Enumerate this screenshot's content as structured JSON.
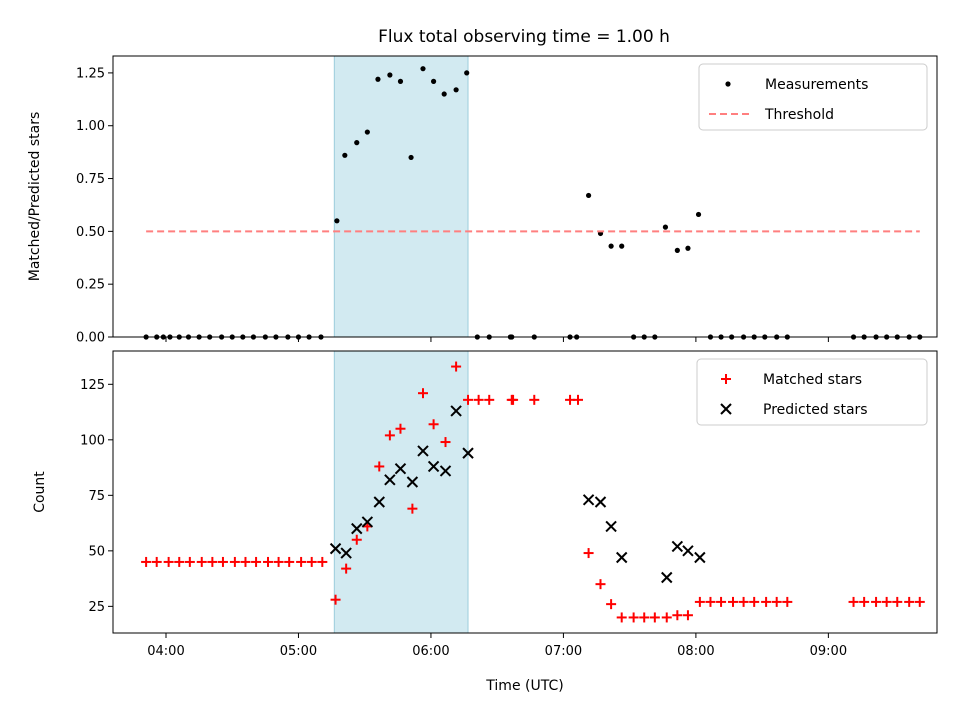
{
  "chart_data": {
    "title": "Flux total observing time = 1.00 h",
    "xlabel": "Time (UTC)",
    "x_ticks": [
      "04:00",
      "05:00",
      "06:00",
      "07:00",
      "08:00",
      "09:00"
    ],
    "x_tick_hours": [
      4,
      5,
      6,
      7,
      8,
      9
    ],
    "xlim_hours": [
      3.6,
      9.82
    ],
    "highlight_span_hours": [
      5.27,
      6.28
    ],
    "highlight_color": "#add8e6",
    "panels": [
      {
        "type": "scatter",
        "ylabel": "Matched/Predicted stars",
        "ylim": [
          0,
          1.33
        ],
        "y_ticks": [
          0.0,
          0.25,
          0.5,
          0.75,
          1.0,
          1.25
        ],
        "y_tick_labels": [
          "0.00",
          "0.25",
          "0.50",
          "0.75",
          "1.00",
          "1.25"
        ],
        "legend_position": "upper right",
        "series": [
          {
            "name": "Measurements",
            "marker": "dot",
            "color": "#000000",
            "points": [
              [
                3.85,
                0
              ],
              [
                3.93,
                0
              ],
              [
                3.98,
                0
              ],
              [
                4.03,
                0
              ],
              [
                4.1,
                0
              ],
              [
                4.17,
                0
              ],
              [
                4.25,
                0
              ],
              [
                4.33,
                0
              ],
              [
                4.42,
                0
              ],
              [
                4.5,
                0
              ],
              [
                4.58,
                0
              ],
              [
                4.66,
                0
              ],
              [
                4.75,
                0
              ],
              [
                4.83,
                0
              ],
              [
                4.92,
                0
              ],
              [
                5.0,
                0
              ],
              [
                5.08,
                0
              ],
              [
                5.17,
                0
              ],
              [
                5.29,
                0.55
              ],
              [
                5.35,
                0.86
              ],
              [
                5.44,
                0.92
              ],
              [
                5.52,
                0.97
              ],
              [
                5.6,
                1.22
              ],
              [
                5.69,
                1.24
              ],
              [
                5.77,
                1.21
              ],
              [
                5.85,
                0.85
              ],
              [
                5.94,
                1.27
              ],
              [
                6.02,
                1.21
              ],
              [
                6.1,
                1.15
              ],
              [
                6.19,
                1.17
              ],
              [
                6.27,
                1.25
              ],
              [
                6.35,
                0
              ],
              [
                6.44,
                0
              ],
              [
                6.6,
                0
              ],
              [
                6.61,
                0
              ],
              [
                6.78,
                0
              ],
              [
                7.05,
                0
              ],
              [
                7.1,
                0
              ],
              [
                7.19,
                0.67
              ],
              [
                7.28,
                0.49
              ],
              [
                7.36,
                0.43
              ],
              [
                7.44,
                0.43
              ],
              [
                7.53,
                0
              ],
              [
                7.61,
                0
              ],
              [
                7.69,
                0
              ],
              [
                7.77,
                0.52
              ],
              [
                7.86,
                0.41
              ],
              [
                7.94,
                0.42
              ],
              [
                8.02,
                0.58
              ],
              [
                8.11,
                0
              ],
              [
                8.19,
                0
              ],
              [
                8.27,
                0
              ],
              [
                8.36,
                0
              ],
              [
                8.44,
                0
              ],
              [
                8.52,
                0
              ],
              [
                8.61,
                0
              ],
              [
                8.69,
                0
              ],
              [
                9.19,
                0
              ],
              [
                9.27,
                0
              ],
              [
                9.36,
                0
              ],
              [
                9.44,
                0
              ],
              [
                9.52,
                0
              ],
              [
                9.61,
                0
              ],
              [
                9.69,
                0
              ]
            ]
          },
          {
            "name": "Threshold",
            "marker": "dashed-line",
            "color": "#ff7f7f",
            "points": [
              [
                3.85,
                0.5
              ],
              [
                9.69,
                0.5
              ]
            ]
          }
        ]
      },
      {
        "type": "scatter",
        "ylabel": "Count",
        "ylim": [
          13,
          140
        ],
        "y_ticks": [
          25,
          50,
          75,
          100,
          125
        ],
        "y_tick_labels": [
          "25",
          "50",
          "75",
          "100",
          "125"
        ],
        "legend_position": "upper right",
        "series": [
          {
            "name": "Matched stars",
            "marker": "plus",
            "color": "#ff0000",
            "points": [
              [
                3.85,
                45
              ],
              [
                3.93,
                45
              ],
              [
                4.02,
                45
              ],
              [
                4.1,
                45
              ],
              [
                4.18,
                45
              ],
              [
                4.27,
                45
              ],
              [
                4.35,
                45
              ],
              [
                4.43,
                45
              ],
              [
                4.52,
                45
              ],
              [
                4.6,
                45
              ],
              [
                4.68,
                45
              ],
              [
                4.77,
                45
              ],
              [
                4.85,
                45
              ],
              [
                4.93,
                45
              ],
              [
                5.02,
                45
              ],
              [
                5.1,
                45
              ],
              [
                5.18,
                45
              ],
              [
                5.28,
                28
              ],
              [
                5.36,
                42
              ],
              [
                5.44,
                55
              ],
              [
                5.52,
                61
              ],
              [
                5.61,
                88
              ],
              [
                5.69,
                102
              ],
              [
                5.77,
                105
              ],
              [
                5.86,
                69
              ],
              [
                5.94,
                121
              ],
              [
                6.02,
                107
              ],
              [
                6.11,
                99
              ],
              [
                6.19,
                133
              ],
              [
                6.28,
                118
              ],
              [
                6.36,
                118
              ],
              [
                6.44,
                118
              ],
              [
                6.61,
                118
              ],
              [
                6.62,
                118
              ],
              [
                6.78,
                118
              ],
              [
                7.05,
                118
              ],
              [
                7.11,
                118
              ],
              [
                7.19,
                49
              ],
              [
                7.28,
                35
              ],
              [
                7.36,
                26
              ],
              [
                7.44,
                20
              ],
              [
                7.53,
                20
              ],
              [
                7.61,
                20
              ],
              [
                7.69,
                20
              ],
              [
                7.78,
                20
              ],
              [
                7.86,
                21
              ],
              [
                7.94,
                21
              ],
              [
                8.03,
                27
              ],
              [
                8.11,
                27
              ],
              [
                8.19,
                27
              ],
              [
                8.28,
                27
              ],
              [
                8.36,
                27
              ],
              [
                8.44,
                27
              ],
              [
                8.53,
                27
              ],
              [
                8.61,
                27
              ],
              [
                8.69,
                27
              ],
              [
                9.19,
                27
              ],
              [
                9.27,
                27
              ],
              [
                9.36,
                27
              ],
              [
                9.44,
                27
              ],
              [
                9.52,
                27
              ],
              [
                9.61,
                27
              ],
              [
                9.69,
                27
              ]
            ]
          },
          {
            "name": "Predicted stars",
            "marker": "x",
            "color": "#000000",
            "points": [
              [
                5.28,
                51
              ],
              [
                5.36,
                49
              ],
              [
                5.44,
                60
              ],
              [
                5.52,
                63
              ],
              [
                5.61,
                72
              ],
              [
                5.69,
                82
              ],
              [
                5.77,
                87
              ],
              [
                5.86,
                81
              ],
              [
                5.94,
                95
              ],
              [
                6.02,
                88
              ],
              [
                6.11,
                86
              ],
              [
                6.19,
                113
              ],
              [
                6.28,
                94
              ],
              [
                7.19,
                73
              ],
              [
                7.28,
                72
              ],
              [
                7.36,
                61
              ],
              [
                7.44,
                47
              ],
              [
                7.78,
                38
              ],
              [
                7.86,
                52
              ],
              [
                7.94,
                50
              ],
              [
                8.03,
                47
              ]
            ]
          }
        ]
      }
    ]
  }
}
